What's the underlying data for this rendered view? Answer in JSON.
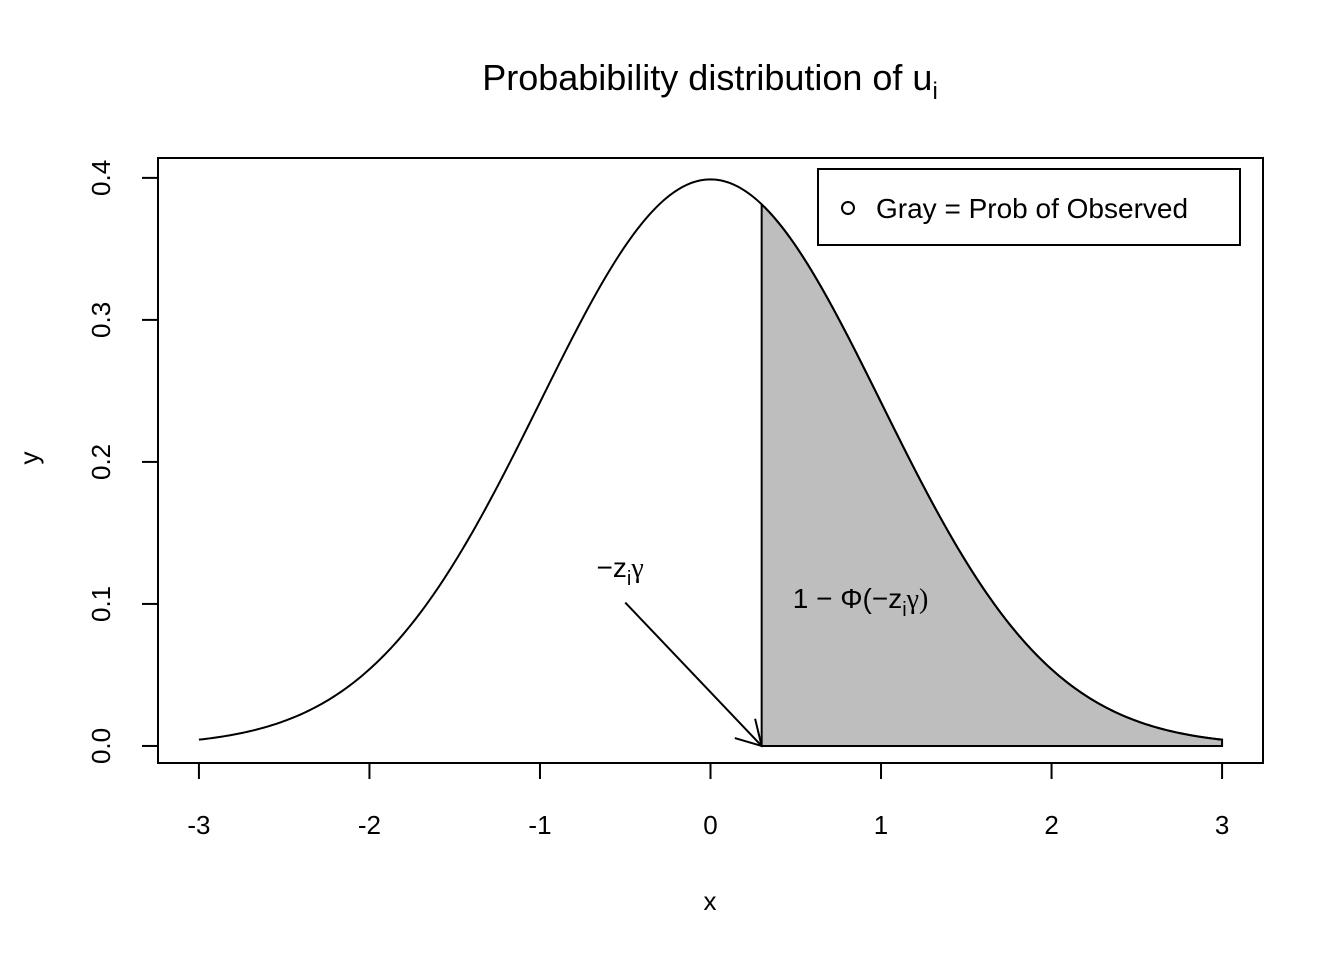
{
  "chart_data": {
    "type": "area",
    "title": "Probabibility distribution of u",
    "title_subscript": "i",
    "xlabel": "x",
    "ylabel": "y",
    "xlim": [
      -3.24,
      3.24
    ],
    "ylim": [
      -0.012,
      0.414
    ],
    "x_ticks": [
      -3,
      -2,
      -1,
      0,
      1,
      2,
      3
    ],
    "x_tick_labels": [
      "-3",
      "-2",
      "-1",
      "0",
      "1",
      "2",
      "3"
    ],
    "y_ticks": [
      0.0,
      0.1,
      0.2,
      0.3,
      0.4
    ],
    "y_tick_labels": [
      "0.0",
      "0.1",
      "0.2",
      "0.3",
      "0.4"
    ],
    "curve": {
      "function": "standard normal density",
      "x_range": [
        -3,
        3
      ],
      "color": "#000000"
    },
    "shaded_region": {
      "x_from": 0.3,
      "x_to": 3,
      "fill": "#bebebe"
    },
    "legend": {
      "position": "top-right",
      "symbol": "open-circle",
      "label": "Gray = Prob of Observed"
    },
    "annotations": [
      {
        "id": "threshold",
        "label_main": "−z",
        "label_sub": "i",
        "label_tail": "γ",
        "label_at": [
          -0.53,
          0.119
        ],
        "arrow_from": [
          -0.5,
          0.101
        ],
        "arrow_to": [
          0.3,
          0.0
        ]
      },
      {
        "id": "prob",
        "label_main": "1 − Φ(−z",
        "label_sub": "i",
        "label_tail": "γ)",
        "label_at": [
          0.88,
          0.097
        ]
      }
    ]
  }
}
